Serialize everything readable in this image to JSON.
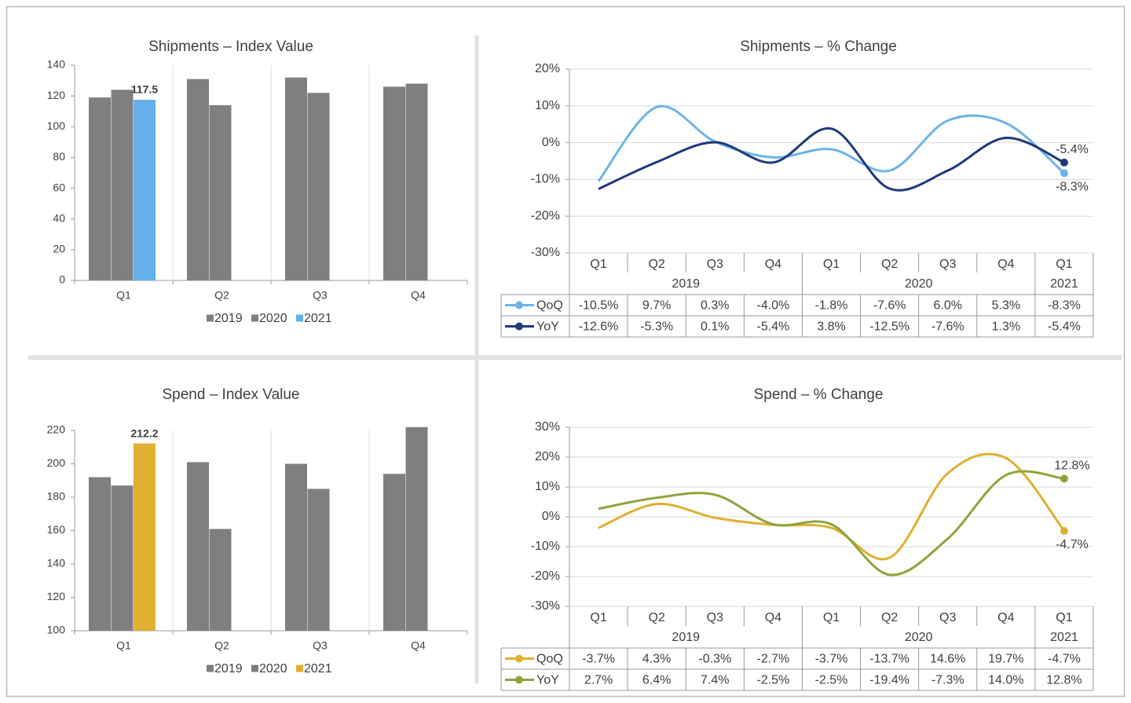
{
  "chart_data": [
    {
      "type": "bar",
      "title": "Shipments – Index Value",
      "title_color": "#1f3a8a",
      "categories": [
        "Q1",
        "Q2",
        "Q3",
        "Q4"
      ],
      "series": [
        {
          "name": "2019",
          "color": "#7f7f7f",
          "values": [
            119,
            131,
            132,
            126
          ]
        },
        {
          "name": "2020",
          "color": "#7f7f7f",
          "values": [
            124,
            114,
            122,
            128
          ]
        },
        {
          "name": "2021",
          "color": "#63b0ea",
          "values": [
            117.5,
            null,
            null,
            null
          ],
          "show_labels": true
        }
      ],
      "ylim": [
        0,
        140
      ],
      "yticks": [
        0,
        20,
        40,
        60,
        80,
        100,
        120,
        140
      ]
    },
    {
      "type": "line",
      "title": "Shipments – % Change",
      "title_color": "#1f3a8a",
      "category_groups": [
        {
          "label": "2019",
          "categories": [
            "Q1",
            "Q2",
            "Q3",
            "Q4"
          ]
        },
        {
          "label": "2020",
          "categories": [
            "Q1",
            "Q2",
            "Q3",
            "Q4"
          ]
        },
        {
          "label": "2021",
          "categories": [
            "Q1"
          ]
        }
      ],
      "series": [
        {
          "name": "QoQ",
          "color": "#6cb4e8",
          "end_label": "below",
          "values": [
            -10.5,
            9.7,
            0.3,
            -4.0,
            -1.8,
            -7.6,
            6.0,
            5.3,
            -8.3
          ],
          "value_labels": [
            "-10.5%",
            "9.7%",
            "0.3%",
            "-4.0%",
            "-1.8%",
            "-7.6%",
            "6.0%",
            "5.3%",
            "-8.3%"
          ]
        },
        {
          "name": "YoY",
          "color": "#1f3a7a",
          "end_label": "above",
          "values": [
            -12.6,
            -5.3,
            0.1,
            -5.4,
            3.8,
            -12.5,
            -7.6,
            1.3,
            -5.4
          ],
          "value_labels": [
            "-12.6%",
            "-5.3%",
            "0.1%",
            "-5.4%",
            "3.8%",
            "-12.5%",
            "-7.6%",
            "1.3%",
            "-5.4%"
          ]
        }
      ],
      "ylim": [
        -30,
        20
      ],
      "yticks": [
        {
          "value": -30,
          "label": "-30%"
        },
        {
          "value": -20,
          "label": "-20%"
        },
        {
          "value": -10,
          "label": "-10%"
        },
        {
          "value": 0,
          "label": "0%"
        },
        {
          "value": 10,
          "label": "10%"
        },
        {
          "value": 20,
          "label": "20%"
        }
      ],
      "grid": true
    },
    {
      "type": "bar",
      "title": "Spend – Index Value",
      "title_color": "#8fa43a",
      "categories": [
        "Q1",
        "Q2",
        "Q3",
        "Q4"
      ],
      "series": [
        {
          "name": "2019",
          "color": "#7f7f7f",
          "values": [
            192,
            201,
            200,
            194
          ]
        },
        {
          "name": "2020",
          "color": "#7f7f7f",
          "values": [
            187,
            161,
            185,
            222
          ]
        },
        {
          "name": "2021",
          "color": "#e0b030",
          "values": [
            212.2,
            null,
            null,
            null
          ],
          "show_labels": true
        }
      ],
      "ylim": [
        100,
        220
      ],
      "yticks": [
        100,
        120,
        140,
        160,
        180,
        200,
        220
      ]
    },
    {
      "type": "line",
      "title": "Spend – % Change",
      "title_color": "#8fa43a",
      "category_groups": [
        {
          "label": "2019",
          "categories": [
            "Q1",
            "Q2",
            "Q3",
            "Q4"
          ]
        },
        {
          "label": "2020",
          "categories": [
            "Q1",
            "Q2",
            "Q3",
            "Q4"
          ]
        },
        {
          "label": "2021",
          "categories": [
            "Q1"
          ]
        }
      ],
      "series": [
        {
          "name": "QoQ",
          "color": "#e0b030",
          "end_label": "below",
          "values": [
            -3.7,
            4.3,
            -0.3,
            -2.7,
            -3.7,
            -13.7,
            14.6,
            19.7,
            -4.7
          ],
          "value_labels": [
            "-3.7%",
            "4.3%",
            "-0.3%",
            "-2.7%",
            "-3.7%",
            "-13.7%",
            "14.6%",
            "19.7%",
            "-4.7%"
          ]
        },
        {
          "name": "YoY",
          "color": "#8fa43a",
          "end_label": "above",
          "values": [
            2.7,
            6.4,
            7.4,
            -2.5,
            -2.5,
            -19.4,
            -7.3,
            14.0,
            12.8
          ],
          "value_labels": [
            "2.7%",
            "6.4%",
            "7.4%",
            "-2.5%",
            "-2.5%",
            "-19.4%",
            "-7.3%",
            "14.0%",
            "12.8%"
          ]
        }
      ],
      "ylim": [
        -30,
        30
      ],
      "yticks": [
        {
          "value": -30,
          "label": "-30%"
        },
        {
          "value": -20,
          "label": "-20%"
        },
        {
          "value": -10,
          "label": "-10%"
        },
        {
          "value": 0,
          "label": "0%"
        },
        {
          "value": 10,
          "label": "10%"
        },
        {
          "value": 20,
          "label": "20%"
        },
        {
          "value": 30,
          "label": "30%"
        }
      ],
      "grid": true
    }
  ]
}
